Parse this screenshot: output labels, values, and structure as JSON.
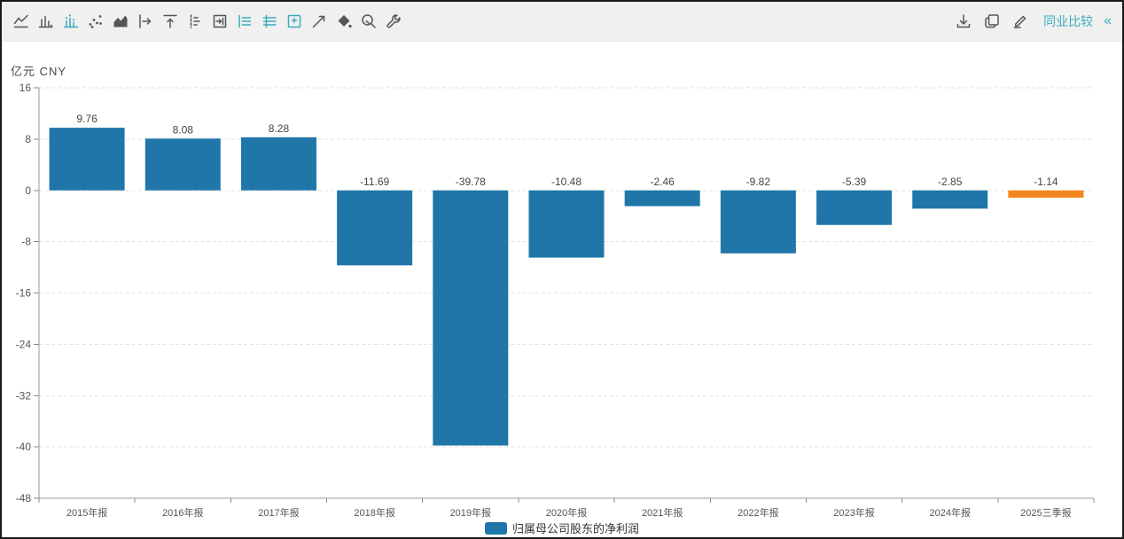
{
  "window": {
    "bg": "#ffffff",
    "border_color": "#1a1a1a"
  },
  "toolbar": {
    "bg": "#f0f0f0",
    "icon_color": "#555555",
    "accent_color": "#3aacbe",
    "left_icons": [
      {
        "name": "line-chart",
        "active": false
      },
      {
        "name": "bar-chart",
        "active": false
      },
      {
        "name": "bar-chart-values",
        "active": true
      },
      {
        "name": "scatter-chart",
        "active": false
      },
      {
        "name": "area-chart",
        "active": false
      },
      {
        "name": "axis-shift-right",
        "active": false
      },
      {
        "name": "label-top",
        "active": false
      },
      {
        "name": "dashed-axis",
        "active": false
      },
      {
        "name": "arrow-into-box",
        "active": false
      },
      {
        "name": "legend-list",
        "active": true
      },
      {
        "name": "legend-lines",
        "active": true
      },
      {
        "name": "data-view-box-plus",
        "active": true
      },
      {
        "name": "trend-line",
        "active": false
      },
      {
        "name": "fill-color",
        "active": false
      },
      {
        "name": "zoom-search",
        "active": false
      },
      {
        "name": "settings-wrench",
        "active": false
      }
    ],
    "right_icons": [
      {
        "name": "download"
      },
      {
        "name": "copy"
      },
      {
        "name": "edit"
      }
    ],
    "peer_compare_label": "同业比较",
    "collapse_glyph": "«"
  },
  "chart_header": {
    "unit_label": "亿元 CNY"
  },
  "chart_data": {
    "type": "bar",
    "title": "",
    "xlabel": "",
    "ylabel": "亿元 CNY",
    "categories": [
      "2015年报",
      "2016年报",
      "2017年报",
      "2018年报",
      "2019年报",
      "2020年报",
      "2021年报",
      "2022年报",
      "2023年报",
      "2024年报",
      "2025三季报"
    ],
    "series": [
      {
        "name": "归属母公司股东的净利润",
        "values": [
          9.76,
          8.08,
          8.28,
          -11.69,
          -39.78,
          -10.48,
          -2.46,
          -9.82,
          -5.39,
          -2.85,
          -1.14
        ]
      }
    ],
    "ylim": [
      -48,
      16
    ],
    "yticks": [
      16,
      8,
      0,
      -8,
      -16,
      -24,
      -32,
      -40,
      -48
    ],
    "grid": true,
    "grid_style": "dashed",
    "legend_position": "bottom",
    "bar_color": "#2076a8",
    "highlight_color": "#f5861f",
    "highlight_index": 10,
    "axis_color": "#999999",
    "gridline_color": "#e2e2e2",
    "tick_label_color": "#555555",
    "value_label_color": "#444444"
  },
  "legend": {
    "label": "归属母公司股东的净利润",
    "swatch_color": "#2076a8"
  }
}
